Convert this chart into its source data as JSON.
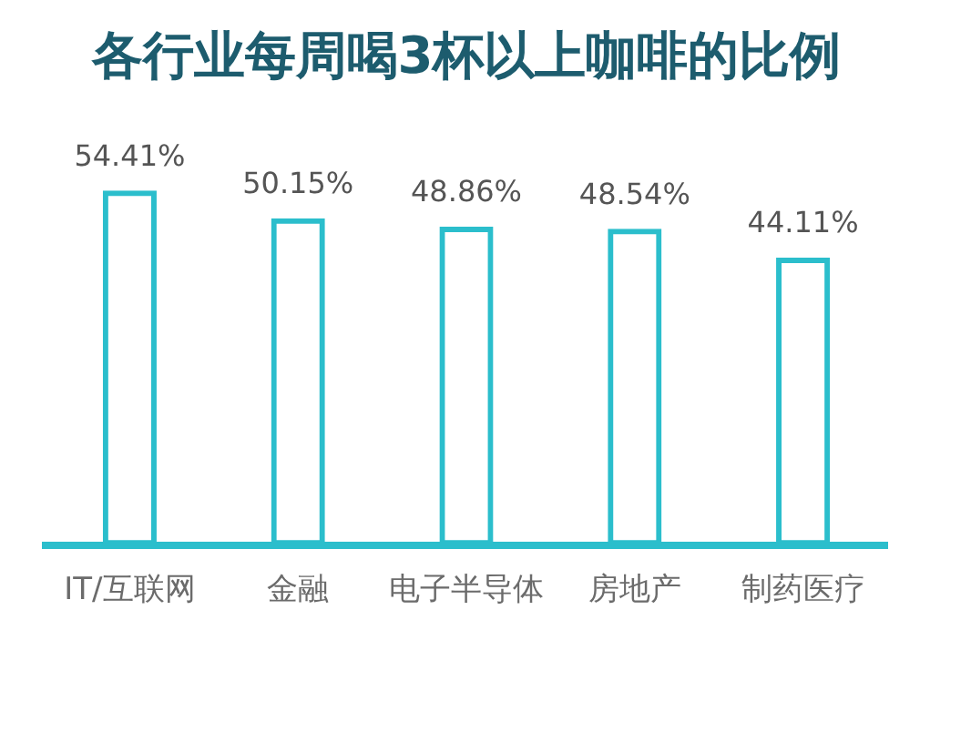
{
  "chart_data": {
    "type": "bar",
    "title": "各行业每周喝3杯以上咖啡的比例",
    "categories": [
      "IT/互联网",
      "金融",
      "电子半导体",
      "房地产",
      "制药医疗"
    ],
    "values": [
      54.41,
      50.15,
      48.86,
      48.54,
      44.11
    ],
    "value_labels": [
      "54.41%",
      "50.15%",
      "48.86%",
      "48.54%",
      "44.11%"
    ],
    "color": "#2bbecc",
    "grid": false,
    "legend": false,
    "tick_labels": "x"
  }
}
